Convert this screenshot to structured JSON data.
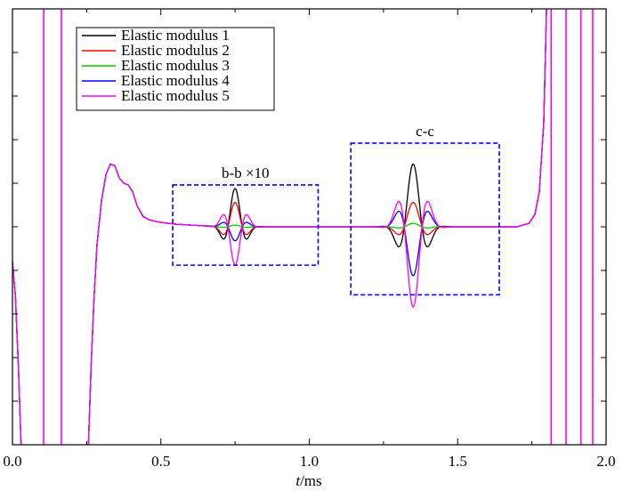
{
  "chart_data": {
    "type": "line",
    "title": "",
    "xlabel_italic": "t",
    "xlabel_rest": "/ms",
    "ylabel": "",
    "xlim": [
      0,
      2
    ],
    "ylim": [
      -1.25,
      1.25
    ],
    "grid": false,
    "legend": {
      "placement": "top-left",
      "boxed": true
    },
    "x_ticks": [
      {
        "value": 0.0,
        "label": "0.0"
      },
      {
        "value": 0.5,
        "label": "0.5"
      },
      {
        "value": 1.0,
        "label": "1.0"
      },
      {
        "value": 1.5,
        "label": "1.5"
      },
      {
        "value": 2.0,
        "label": "2.0"
      }
    ],
    "y_ticks": [
      -1.0,
      -0.75,
      -0.5,
      -0.25,
      0.0,
      0.25,
      0.5,
      0.75,
      1.0
    ],
    "series": [
      {
        "name": "Elastic modulus 1",
        "color": "#000000",
        "packet_b_amplitude": 0.22,
        "packet_c_amplitude": 0.36
      },
      {
        "name": "Elastic modulus 2",
        "color": "#ff0000",
        "packet_b_amplitude": 0.14,
        "packet_c_amplitude": 0.14
      },
      {
        "name": "Elastic modulus 3",
        "color": "#00cc00",
        "packet_b_amplitude": 0.01,
        "packet_c_amplitude": 0.02
      },
      {
        "name": "Elastic modulus 4",
        "color": "#0000ff",
        "packet_b_amplitude": -0.08,
        "packet_c_amplitude": -0.28
      },
      {
        "name": "Elastic modulus 5",
        "color": "#ff00ff",
        "packet_b_amplitude": -0.22,
        "packet_c_amplitude": -0.46
      }
    ],
    "common_signal": {
      "points": [
        [
          0.0,
          -0.2
        ],
        [
          0.01,
          -0.4
        ],
        [
          0.02,
          -0.8
        ],
        [
          0.03,
          -1.3
        ],
        [
          0.255,
          -1.3
        ],
        [
          0.265,
          -0.8
        ],
        [
          0.275,
          -0.4
        ],
        [
          0.285,
          -0.1
        ],
        [
          0.3,
          0.15
        ],
        [
          0.315,
          0.3
        ],
        [
          0.33,
          0.36
        ],
        [
          0.345,
          0.35
        ],
        [
          0.36,
          0.28
        ],
        [
          0.375,
          0.25
        ],
        [
          0.39,
          0.24
        ],
        [
          0.405,
          0.2
        ],
        [
          0.42,
          0.12
        ],
        [
          0.44,
          0.06
        ],
        [
          0.46,
          0.04
        ],
        [
          0.5,
          0.025
        ],
        [
          0.55,
          0.015
        ],
        [
          0.6,
          0.01
        ],
        [
          0.65,
          0.005
        ],
        [
          0.7,
          0.0
        ],
        [
          1.7,
          0.0
        ],
        [
          1.74,
          0.02
        ],
        [
          1.76,
          0.07
        ],
        [
          1.775,
          0.2
        ],
        [
          1.79,
          0.6
        ],
        [
          1.8,
          1.3
        ]
      ],
      "oscillation_lines_x": [
        0.105,
        0.165,
        1.815,
        1.865,
        1.915,
        1.955
      ]
    },
    "packets": [
      {
        "label": "b-b  ×10",
        "center": 0.75,
        "width": 0.04,
        "box": {
          "x": [
            0.54,
            1.03
          ],
          "y": [
            -0.22,
            0.24
          ]
        }
      },
      {
        "label": "c-c",
        "center": 1.35,
        "width": 0.05,
        "box": {
          "x": [
            1.14,
            1.64
          ],
          "y": [
            -0.39,
            0.48
          ]
        }
      }
    ]
  }
}
